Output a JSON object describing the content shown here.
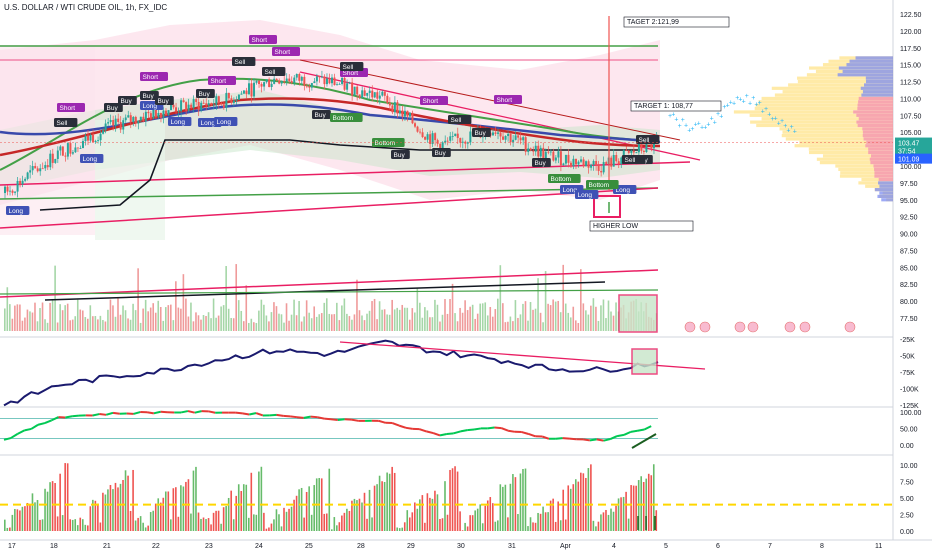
{
  "header": {
    "title": "U.S. DOLLAR / WTI CRUDE OIL, 1h, FX_IDC"
  },
  "price_axis": {
    "ticks": [
      "122.50",
      "120.00",
      "117.50",
      "115.00",
      "112.50",
      "110.00",
      "107.50",
      "105.00",
      "102.50",
      "100.00",
      "97.50",
      "95.00",
      "92.50",
      "90.00",
      "87.50",
      "85.00",
      "82.50",
      "80.00",
      "77.50"
    ],
    "last_price": "103.47",
    "countdown": "37:54",
    "support_price": "101.09"
  },
  "osc1_axis": {
    "ticks": [
      "-25K",
      "-50K",
      "-75K",
      "-100K",
      "-125K"
    ]
  },
  "osc2_axis": {
    "ticks": [
      "100.00",
      "50.00",
      "0.00"
    ]
  },
  "osc3_axis": {
    "ticks": [
      "10.00",
      "7.50",
      "5.00",
      "2.50",
      "0.00"
    ]
  },
  "time_axis": {
    "labels": [
      "17",
      "18",
      "21",
      "22",
      "23",
      "24",
      "25",
      "28",
      "29",
      "30",
      "31",
      "Apr",
      "4",
      "5",
      "6",
      "7",
      "8",
      "11"
    ]
  },
  "annotations": {
    "target2": "TAGET 2:121,99",
    "target1": "TARGET 1:  108,77",
    "higher_low": "HIGHER LOW"
  },
  "signal_labels": {
    "long": "Long",
    "short": "Short",
    "buy": "Buy",
    "sell": "Sell",
    "bottom": "Bottom"
  },
  "colors": {
    "candle_up": "#26a69a",
    "candle_down": "#ef5350",
    "trendline": "#e91e63",
    "ma_green": "#43a047",
    "ma_black": "#131722",
    "osc_line": "#1a1a6e",
    "long_label": "#3f51b5",
    "short_label": "#9c27b0",
    "buy_label": "#2a2e39",
    "bottom_label": "#388e3c"
  },
  "chart_data": {
    "type": "candlestick",
    "title": "U.S. DOLLAR / WTI CRUDE OIL, 1h, FX_IDC",
    "x": [
      "17",
      "18",
      "21",
      "22",
      "23",
      "24",
      "25",
      "28",
      "29",
      "30",
      "31",
      "Apr",
      "4"
    ],
    "close": [
      96.0,
      102.0,
      106.0,
      108.5,
      109.5,
      113.0,
      112.5,
      110.0,
      103.0,
      105.5,
      101.5,
      100.0,
      103.47
    ],
    "ylim": [
      77.5,
      122.5
    ],
    "targets": {
      "target_1": 108.77,
      "target_2": 121.99
    },
    "volume_panel": true,
    "oscillator_1": {
      "ylim": [
        -125000,
        -25000
      ],
      "values": [
        -125000,
        -95000,
        -82000,
        -72000,
        -55000,
        -42000,
        -48000,
        -30000,
        -45000,
        -55000,
        -70000,
        -72000,
        -60000
      ]
    },
    "oscillator_2": {
      "ylim": [
        0,
        100
      ],
      "values": [
        15,
        85,
        95,
        100,
        100,
        90,
        80,
        70,
        30,
        55,
        20,
        15,
        60
      ]
    },
    "oscillator_3": {
      "ylim": [
        0,
        10
      ],
      "threshold": 4
    }
  }
}
